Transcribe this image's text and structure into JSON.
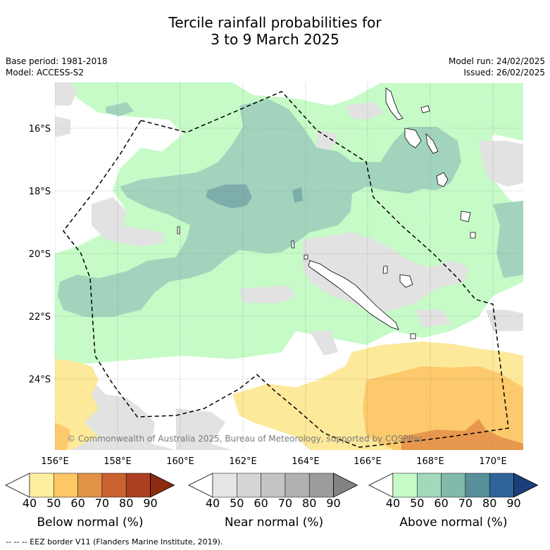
{
  "title_line1": "Tercile rainfall probabilities for",
  "title_line2": "3 to 9 March 2025",
  "meta_left": [
    "Base period: 1981-2018",
    "Model: ACCESS-S2"
  ],
  "meta_right": [
    "Model run: 24/02/2025",
    "Issued: 26/02/2025"
  ],
  "lat_labels": [
    "16°S",
    "18°S",
    "20°S",
    "22°S",
    "24°S"
  ],
  "lon_labels": [
    "156°E",
    "158°E",
    "160°E",
    "162°E",
    "164°E",
    "166°E",
    "168°E",
    "170°E"
  ],
  "copyright": "© Commonwealth of Australia 2025, Bureau of Meteorology, supported by COSPPac",
  "footer": "--  --  -- EEZ border V11 (Flanders Marine Institute, 2019).",
  "colorbars": [
    {
      "label": "Below normal (%)",
      "ticks": [
        "40",
        "50",
        "60",
        "70",
        "80",
        "90"
      ],
      "colors": [
        "#ffffff",
        "#fdeea0",
        "#fcc765",
        "#e29347",
        "#c9622f",
        "#ab4020",
        "#8b2a10"
      ]
    },
    {
      "label": "Near normal (%)",
      "ticks": [
        "40",
        "50",
        "60",
        "70",
        "80",
        "90"
      ],
      "colors": [
        "#ffffff",
        "#e5e5e5",
        "#d5d5d5",
        "#c4c4c4",
        "#b1b1b1",
        "#9c9c9c",
        "#838383"
      ]
    },
    {
      "label": "Above normal (%)",
      "ticks": [
        "40",
        "50",
        "60",
        "70",
        "80",
        "90"
      ],
      "colors": [
        "#ffffff",
        "#c6fbc7",
        "#a2d9bc",
        "#82b9ad",
        "#578f9a",
        "#2f6499",
        "#1b3f7a"
      ]
    }
  ],
  "colors": {
    "green_light": "#c6fbc7",
    "green_mid": "#a2d4bd",
    "teal": "#7eaeab",
    "grey": "#e2e2e2",
    "orange_light": "#fde99a",
    "orange_mid": "#fcc96c",
    "orange_dark": "#e8984e"
  }
}
